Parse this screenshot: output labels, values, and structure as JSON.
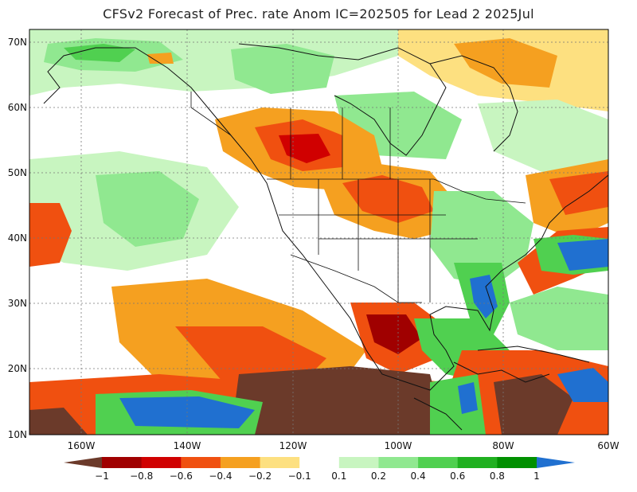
{
  "title": "CFSv2 Forecast of Prec. rate Anom IC=202505 for Lead 2 2025Jul",
  "lat_labels": [
    "70N",
    "60N",
    "50N",
    "40N",
    "30N",
    "20N",
    "10N"
  ],
  "lon_labels": [
    "160W",
    "140W",
    "120W",
    "100W",
    "80W",
    "60W"
  ],
  "colorbar": {
    "labels": [
      "−1",
      "−0.8",
      "−0.6",
      "−0.4",
      "−0.2",
      "−0.1",
      "0.1",
      "0.2",
      "0.4",
      "0.6",
      "0.8",
      "1"
    ],
    "colors": [
      "#6b3a2a",
      "#a00000",
      "#d00000",
      "#f05010",
      "#f5a020",
      "#fde080",
      "#ffffff",
      "#c8f5c0",
      "#90e890",
      "#50d050",
      "#20b020",
      "#009000",
      "#2070d0"
    ]
  },
  "anomaly_colors": {
    "dry_extreme": "#6b3a2a",
    "dry_strong": "#d00000",
    "dry_moderate": "#f05010",
    "dry_weak": "#f5a020",
    "dry_slight": "#fde080",
    "wet_slight": "#c8f5c0",
    "wet_weak": "#90e890",
    "wet_moderate": "#50d050",
    "wet_strong": "#20b020",
    "wet_extreme": "#2070d0"
  }
}
